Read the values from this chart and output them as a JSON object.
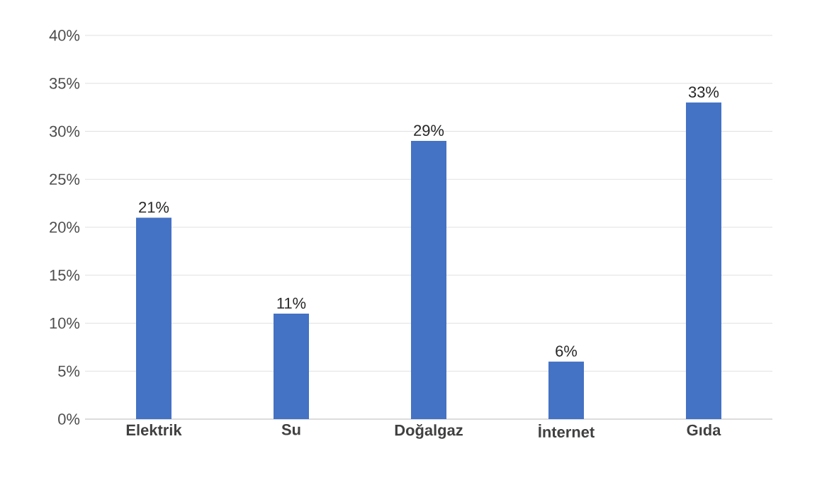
{
  "chart_data": {
    "type": "bar",
    "categories": [
      "Elektrik",
      "Su",
      "Doğalgaz",
      "İnternet",
      "Gıda"
    ],
    "values": [
      21,
      11,
      29,
      6,
      33
    ],
    "value_labels": [
      "21%",
      "11%",
      "29%",
      "6%",
      "33%"
    ],
    "color": "#4472c4",
    "ylim": [
      0,
      40
    ],
    "yticks": [
      {
        "value": 0,
        "label": "0%"
      },
      {
        "value": 5,
        "label": "5%"
      },
      {
        "value": 10,
        "label": "10%"
      },
      {
        "value": 15,
        "label": "15%"
      },
      {
        "value": 20,
        "label": "20%"
      },
      {
        "value": 25,
        "label": "25%"
      },
      {
        "value": 30,
        "label": "30%"
      },
      {
        "value": 35,
        "label": "35%"
      },
      {
        "value": 40,
        "label": "40%"
      }
    ],
    "grid": "y"
  }
}
